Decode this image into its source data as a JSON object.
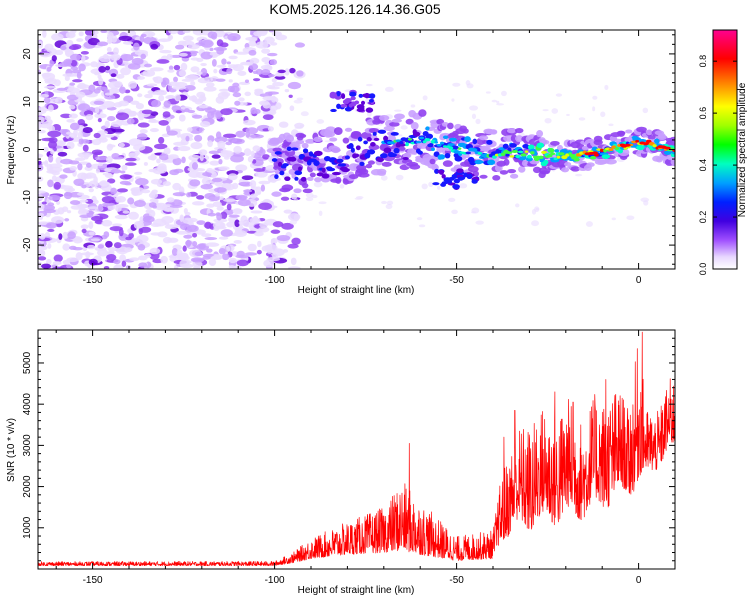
{
  "title": "KOM5.2025.126.14.36.G05",
  "chart_data": [
    {
      "type": "heatmap",
      "xlabel": "Height of straight line (km)",
      "ylabel": "Frequency (Hz)",
      "xlim": [
        -165,
        10
      ],
      "ylim": [
        -25,
        25
      ],
      "xticks": [
        -150,
        -100,
        -50,
        0
      ],
      "yticks": [
        -20,
        -10,
        0,
        10,
        20
      ],
      "colorbar": {
        "label": "Normalized spectral amplitude",
        "range": [
          0,
          0.92
        ],
        "ticks": [
          0.0,
          0.2,
          0.4,
          0.6,
          0.8
        ],
        "colors": [
          "#ffffff",
          "#c880ff",
          "#6a00d8",
          "#1010ff",
          "#00c8ff",
          "#00ff60",
          "#b0ff00",
          "#ffff00",
          "#ff8000",
          "#ff0000",
          "#ff0080"
        ]
      },
      "features": {
        "noise_region_x": [
          -165,
          -95
        ],
        "noise_freq_range": [
          -25,
          25
        ],
        "signal_trace": [
          {
            "x": -100,
            "f": -2.5
          },
          {
            "x": -90,
            "f": -3
          },
          {
            "x": -80,
            "f": -1
          },
          {
            "x": -70,
            "f": 1
          },
          {
            "x": -60,
            "f": 2
          },
          {
            "x": -50,
            "f": 0
          },
          {
            "x": -40,
            "f": -1
          },
          {
            "x": -30,
            "f": -1
          },
          {
            "x": -20,
            "f": -1.5
          },
          {
            "x": -10,
            "f": -0.5
          },
          {
            "x": 0,
            "f": 1.5
          },
          {
            "x": 10,
            "f": 0
          }
        ],
        "secondary_blob": {
          "x": [
            -82,
            -75
          ],
          "f": [
            9,
            11
          ]
        }
      }
    },
    {
      "type": "line",
      "xlabel": "Height of straight line (km)",
      "ylabel": "SNR (10 * v/v)",
      "xlim": [
        -165,
        10
      ],
      "ylim": [
        0,
        5800
      ],
      "xticks": [
        -150,
        -100,
        -50,
        0
      ],
      "yticks": [
        1000,
        2000,
        3000,
        4000,
        5000
      ],
      "color": "#ff0000",
      "envelope": [
        {
          "x": -165,
          "base": 80,
          "amp": 100
        },
        {
          "x": -100,
          "base": 80,
          "amp": 110
        },
        {
          "x": -95,
          "base": 150,
          "amp": 250
        },
        {
          "x": -90,
          "base": 250,
          "amp": 500
        },
        {
          "x": -80,
          "base": 350,
          "amp": 800
        },
        {
          "x": -70,
          "base": 400,
          "amp": 1100
        },
        {
          "x": -65,
          "base": 450,
          "amp": 1700
        },
        {
          "x": -60,
          "base": 350,
          "amp": 1300
        },
        {
          "x": -50,
          "base": 200,
          "amp": 600
        },
        {
          "x": -40,
          "base": 250,
          "amp": 700
        },
        {
          "x": -37,
          "base": 900,
          "amp": 1800
        },
        {
          "x": -30,
          "base": 1100,
          "amp": 2600
        },
        {
          "x": -20,
          "base": 1300,
          "amp": 2700
        },
        {
          "x": -15,
          "base": 1400,
          "amp": 2400
        },
        {
          "x": -8,
          "base": 1700,
          "amp": 2700
        },
        {
          "x": -3,
          "base": 1900,
          "amp": 2100
        },
        {
          "x": 0,
          "base": 2200,
          "amp": 3500
        },
        {
          "x": 2,
          "base": 2200,
          "amp": 1500
        },
        {
          "x": 5,
          "base": 2600,
          "amp": 1400
        },
        {
          "x": 10,
          "base": 2900,
          "amp": 1700
        }
      ],
      "peaks": [
        {
          "x": -63,
          "y": 3050
        },
        {
          "x": -37,
          "y": 3200
        },
        {
          "x": -34,
          "y": 3850
        },
        {
          "x": -23,
          "y": 4300
        },
        {
          "x": -18,
          "y": 4050
        },
        {
          "x": -9,
          "y": 4600
        },
        {
          "x": 1,
          "y": 5750
        },
        {
          "x": 10,
          "y": 4700
        }
      ]
    }
  ]
}
